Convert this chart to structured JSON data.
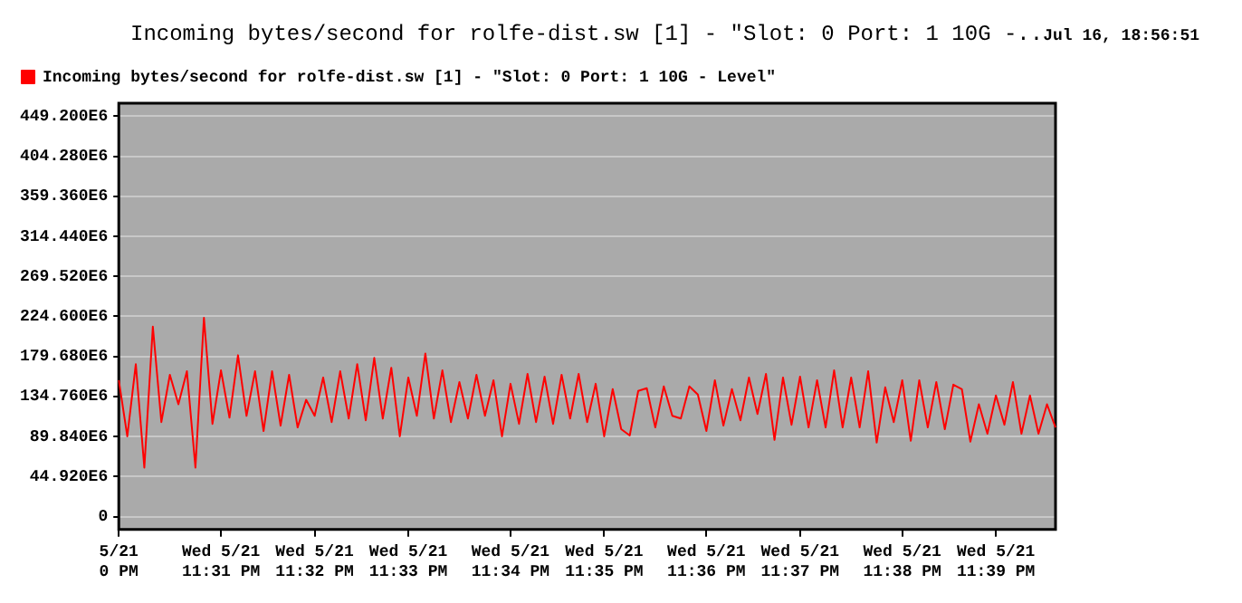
{
  "chart_data": {
    "type": "line",
    "title": "Incoming bytes/second for rolfe-dist.sw [1] - \"Slot: 0 Port: 1 10G -..",
    "subtitle": "Jul 16, 18:56:51",
    "categories": [
      "5/21\n0 PM",
      null,
      null,
      null,
      null,
      null,
      null,
      null,
      null,
      null,
      null,
      null,
      "Wed 5/21\n11:31 PM",
      null,
      null,
      null,
      null,
      null,
      null,
      null,
      null,
      null,
      null,
      "Wed 5/21\n11:32 PM",
      null,
      null,
      null,
      null,
      null,
      null,
      null,
      null,
      null,
      null,
      "Wed 5/21\n11:33 PM",
      null,
      null,
      null,
      null,
      null,
      null,
      null,
      null,
      null,
      null,
      null,
      "Wed 5/21\n11:34 PM",
      null,
      null,
      null,
      null,
      null,
      null,
      null,
      null,
      null,
      null,
      "Wed 5/21\n11:35 PM",
      null,
      null,
      null,
      null,
      null,
      null,
      null,
      null,
      null,
      null,
      null,
      "Wed 5/21\n11:36 PM",
      null,
      null,
      null,
      null,
      null,
      null,
      null,
      null,
      null,
      null,
      "Wed 5/21\n11:37 PM",
      null,
      null,
      null,
      null,
      null,
      null,
      null,
      null,
      null,
      null,
      null,
      "Wed 5/21\n11:38 PM",
      null,
      null,
      null,
      null,
      null,
      null,
      null,
      null,
      null,
      null,
      "Wed 5/21\n11:39 PM",
      null,
      null,
      null,
      null,
      null,
      null,
      null
    ],
    "series": [
      {
        "name": "Incoming bytes/second for rolfe-dist.sw [1] - \"Slot: 0 Port: 1 10G - Level\"",
        "color": "#ff0000",
        "values": [
          153000000,
          90000000,
          171000000,
          55000000,
          213000000,
          106000000,
          159000000,
          126000000,
          163000000,
          55000000,
          223000000,
          104000000,
          164000000,
          111000000,
          181000000,
          113000000,
          163000000,
          96000000,
          163000000,
          102000000,
          159000000,
          100000000,
          131000000,
          113000000,
          156000000,
          106000000,
          163000000,
          110000000,
          171000000,
          108000000,
          178000000,
          110000000,
          167000000,
          90000000,
          156000000,
          113000000,
          183000000,
          110000000,
          164000000,
          106000000,
          151000000,
          110000000,
          159000000,
          113000000,
          153000000,
          90000000,
          149000000,
          104000000,
          160000000,
          106000000,
          157000000,
          104000000,
          159000000,
          110000000,
          160000000,
          106000000,
          149000000,
          90000000,
          143000000,
          98000000,
          91000000,
          141000000,
          144000000,
          100000000,
          146000000,
          113000000,
          110000000,
          146000000,
          137000000,
          96000000,
          153000000,
          102000000,
          143000000,
          108000000,
          156000000,
          115000000,
          160000000,
          86000000,
          156000000,
          103000000,
          157000000,
          100000000,
          153000000,
          100000000,
          164000000,
          100000000,
          156000000,
          100000000,
          163000000,
          83000000,
          145000000,
          106000000,
          153000000,
          85000000,
          153000000,
          100000000,
          151000000,
          98000000,
          148000000,
          143000000,
          84000000,
          126000000,
          93000000,
          136000000,
          103000000,
          151000000,
          93000000,
          136000000,
          93000000,
          126000000,
          100000000
        ]
      }
    ],
    "ylim": [
      -14500000,
      463800000
    ],
    "yticks": [
      0,
      {
        "value": 44920000,
        "label": "44.920E6"
      },
      {
        "value": 89840000,
        "label": "89.840E6"
      },
      {
        "value": 134760000,
        "label": "134.760E6"
      },
      {
        "value": 179680000,
        "label": "179.680E6"
      },
      {
        "value": 224600000,
        "label": "224.600E6"
      },
      {
        "value": 269520000,
        "label": "269.520E6"
      },
      {
        "value": 314440000,
        "label": "314.440E6"
      },
      {
        "value": 359360000,
        "label": "359.360E6"
      },
      {
        "value": 404280000,
        "label": "404.280E6"
      },
      {
        "value": 449200000,
        "label": "449.200E6"
      }
    ],
    "grid": "y",
    "legend": "top left",
    "marker": "none",
    "line_style": "solid"
  }
}
